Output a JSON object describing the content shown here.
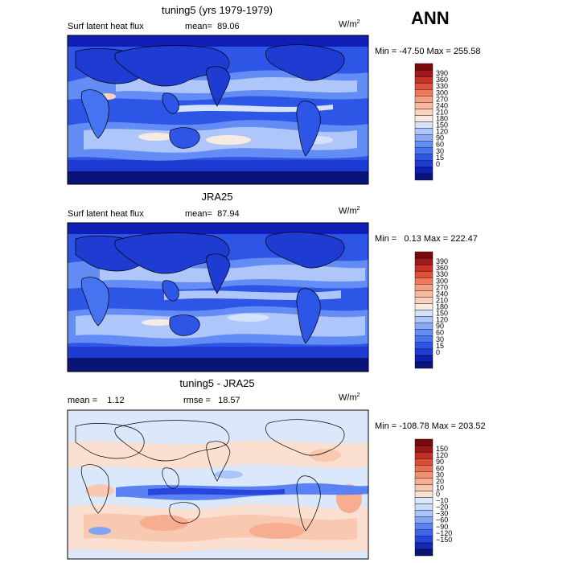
{
  "season": "ANN",
  "units_base": "W/m",
  "units_exp": "2",
  "colors": {
    "abs_scale": [
      "#0a1478",
      "#0f1eb4",
      "#1e3cd2",
      "#2d55e6",
      "#4673f0",
      "#648cf5",
      "#8aaaf8",
      "#afc6fa",
      "#d4e3fb",
      "#f7ebe1",
      "#fbd2be",
      "#f9b99e",
      "#f69e80",
      "#f0785a",
      "#e0503a",
      "#c83228",
      "#a31818",
      "#7a0a0a"
    ],
    "diff_scale": [
      "#0a1478",
      "#1428b4",
      "#2846dc",
      "#3c64ec",
      "#5a82f2",
      "#82a4f6",
      "#aac4f9",
      "#c9dbfb",
      "#dbe8fb",
      "#fbe0d2",
      "#f9c8b0",
      "#f6ad90",
      "#f09070",
      "#e86e52",
      "#d84c38",
      "#c03024",
      "#9a1818",
      "#780a0a"
    ]
  },
  "panels": [
    {
      "title": "tuning5 (yrs 1979-1979)",
      "left_label": "Surf latent heat flux",
      "mean_label": "mean=",
      "mean_value": "89.06",
      "min_label": "Min =",
      "min_value": "-47.50",
      "max_label": "Max =",
      "max_value": "255.58",
      "colorbar_labels": [
        "390",
        "360",
        "330",
        "300",
        "270",
        "240",
        "210",
        "180",
        "150",
        "120",
        "90",
        "60",
        "30",
        "15",
        "0"
      ]
    },
    {
      "title": "JRA25",
      "left_label": "Surf latent heat flux",
      "mean_label": "mean=",
      "mean_value": "87.94",
      "min_label": "Min =",
      "min_value": "0.13",
      "max_label": "Max =",
      "max_value": "222.47",
      "colorbar_labels": [
        "390",
        "360",
        "330",
        "300",
        "270",
        "240",
        "210",
        "180",
        "150",
        "120",
        "90",
        "60",
        "30",
        "15",
        "0"
      ]
    },
    {
      "title": "tuning5 - JRA25",
      "mean_label": "mean =",
      "mean_value": "1.12",
      "rmse_label": "rmse =",
      "rmse_value": "18.57",
      "min_label": "Min =",
      "min_value": "-108.78",
      "max_label": "Max =",
      "max_value": "203.52",
      "colorbar_labels": [
        "150",
        "120",
        "90",
        "60",
        "30",
        "20",
        "10",
        "0",
        "−10",
        "−20",
        "−30",
        "−60",
        "−90",
        "−120",
        "−150"
      ]
    }
  ]
}
